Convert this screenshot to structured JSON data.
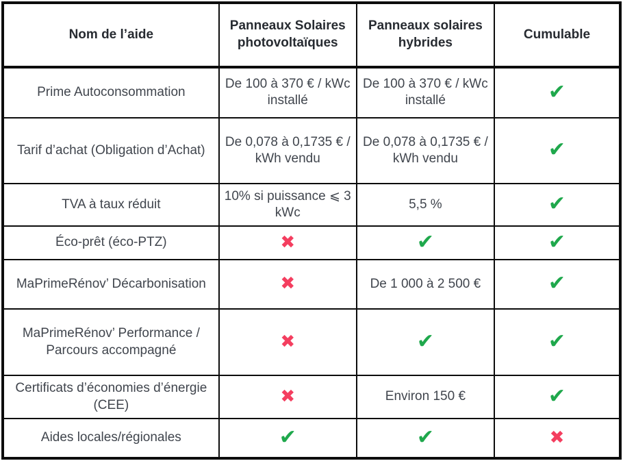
{
  "table": {
    "columns": [
      {
        "label": "Nom de l’aide"
      },
      {
        "label": "Panneaux Solaires photovoltaïques"
      },
      {
        "label": "Panneaux solaires hybrides"
      },
      {
        "label": "Cumulable"
      }
    ],
    "marks": {
      "check": "✔",
      "cross": "✖"
    },
    "colors": {
      "check": "#1fa84c",
      "cross": "#f43e5f",
      "border": "#0c0c0c",
      "text": "#40454d",
      "header_text": "#272b31"
    },
    "rows": [
      {
        "name": "Prime Autoconsommation",
        "pv": "De 100 à 370 € / kWc installé",
        "hybrid": "De 100 à 370 € / kWc installé",
        "cumulable": "check"
      },
      {
        "name": "Tarif d’achat (Obligation d’Achat)",
        "pv": "De 0,078 à 0,1735 € / kWh vendu",
        "hybrid": "De 0,078 à 0,1735 € / kWh vendu",
        "cumulable": "check"
      },
      {
        "name": "TVA à taux réduit",
        "pv": "10% si puissance ⩽ 3 kWc",
        "hybrid": "5,5 %",
        "cumulable": "check"
      },
      {
        "name": "Éco-prêt (éco-PTZ)",
        "pv": "cross",
        "hybrid": "check",
        "cumulable": "check"
      },
      {
        "name": "MaPrimeRénov’ Décarbonisation",
        "pv": "cross",
        "hybrid": "De 1 000 à 2 500 €",
        "cumulable": "check"
      },
      {
        "name": "MaPrimeRénov’ Performance / Parcours accompagné",
        "pv": "cross",
        "hybrid": "check",
        "cumulable": "check"
      },
      {
        "name": "Certificats d’économies d’énergie (CEE)",
        "pv": "cross",
        "hybrid": "Environ 150 €",
        "cumulable": "check"
      },
      {
        "name": "Aides locales/régionales",
        "pv": "check",
        "hybrid": "check",
        "cumulable": "cross"
      }
    ]
  }
}
